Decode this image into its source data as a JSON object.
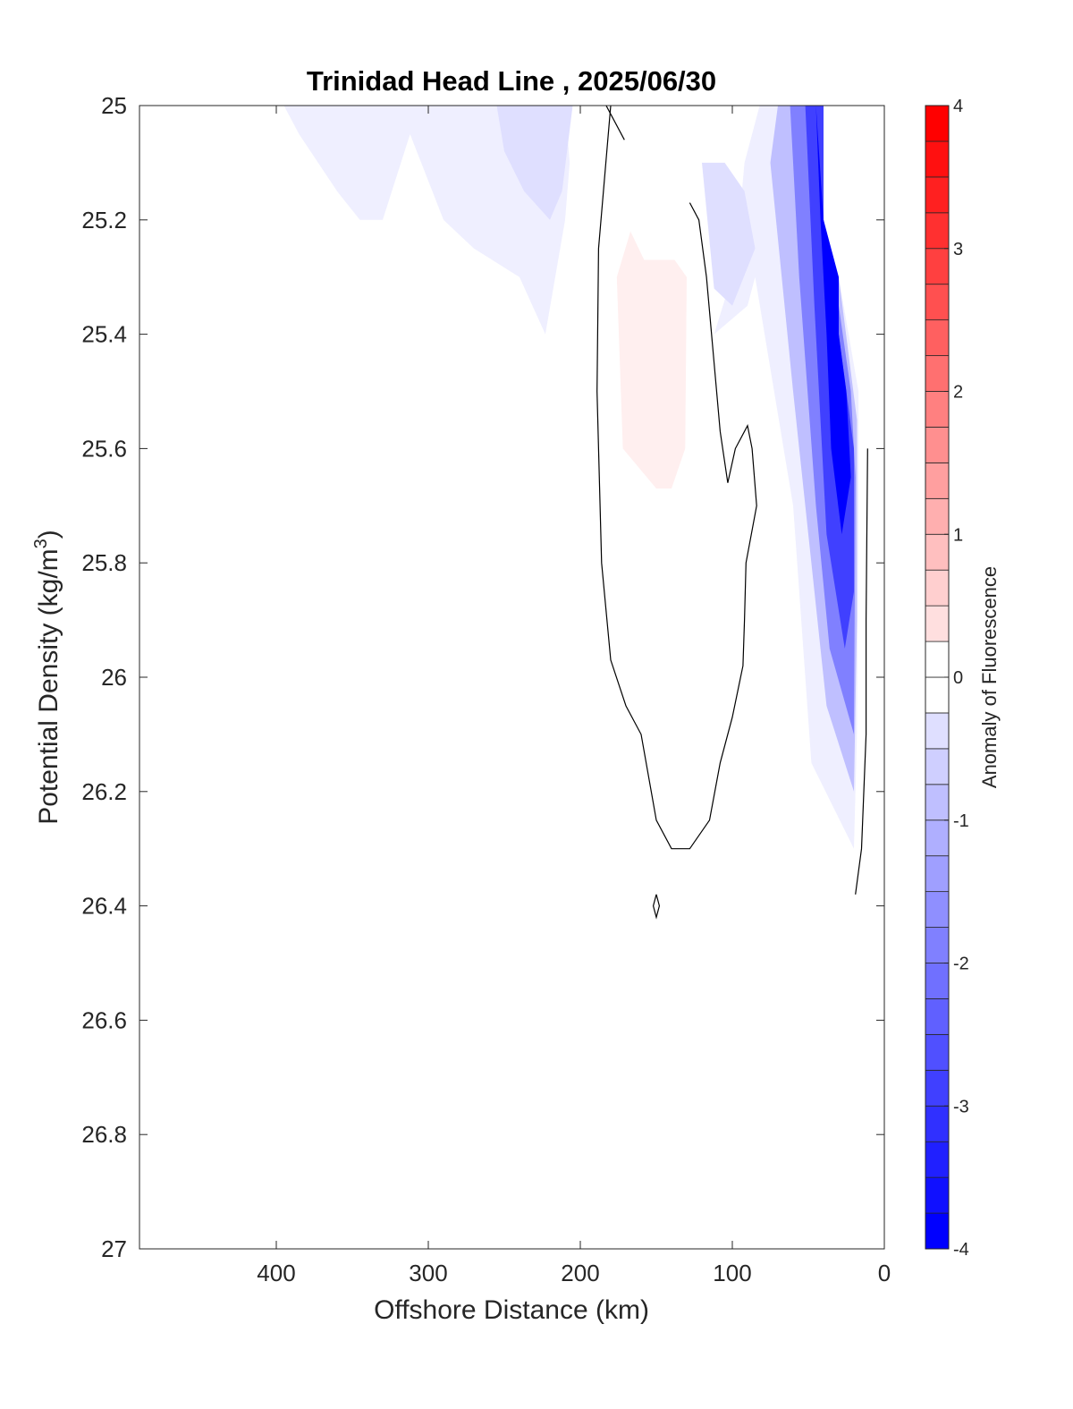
{
  "chart_data": {
    "type": "heatmap",
    "subtype": "filled-contour section",
    "title": "Trinidad Head Line , 2025/06/30",
    "xlabel": "Offshore Distance (km)",
    "ylabel": "Potential Density (kg/m",
    "ylabel_sup": "3",
    "ylabel_close": ")",
    "xlim": [
      490,
      0
    ],
    "ylim": [
      25,
      27
    ],
    "x_reversed": true,
    "y_reversed": true,
    "xticks": [
      400,
      300,
      200,
      100,
      0
    ],
    "xtick_labels": [
      "400",
      "300",
      "200",
      "100",
      "0"
    ],
    "yticks": [
      25,
      25.2,
      25.4,
      25.6,
      25.8,
      26,
      26.2,
      26.4,
      26.6,
      26.8,
      27
    ],
    "ytick_labels": [
      "25",
      "25.2",
      "25.4",
      "25.6",
      "25.8",
      "26",
      "26.2",
      "26.4",
      "26.6",
      "26.8",
      "27"
    ],
    "grid": false,
    "colorbar": {
      "label": "Anomaly of Fluorescence",
      "range": [
        -4,
        4
      ],
      "step": 0.25,
      "ticks": [
        4,
        3,
        2,
        1,
        0,
        -1,
        -2,
        -3,
        -4
      ],
      "tick_labels": [
        "4",
        "3",
        "2",
        "1",
        "0",
        "-1",
        "-2",
        "-3",
        "-4"
      ],
      "colormap": "blue-white-red",
      "low_color": "#0000ff",
      "mid_color": "#ffffff",
      "high_color": "#ff0000"
    },
    "filled_regions": [
      {
        "name": "offshore surface negative",
        "value": -0.25,
        "points": [
          [
            395,
            25
          ],
          [
            210,
            25
          ],
          [
            207,
            25.1
          ],
          [
            210,
            25.2
          ],
          [
            223,
            25.4
          ],
          [
            240,
            25.3
          ],
          [
            270,
            25.25
          ],
          [
            290,
            25.2
          ],
          [
            312,
            25.05
          ],
          [
            330,
            25.2
          ],
          [
            345,
            25.2
          ],
          [
            360,
            25.15
          ],
          [
            385,
            25.05
          ]
        ]
      },
      {
        "name": "offshore core negative",
        "value": -0.5,
        "points": [
          [
            255,
            25
          ],
          [
            205,
            25
          ],
          [
            212,
            25.15
          ],
          [
            220,
            25.2
          ],
          [
            237,
            25.15
          ],
          [
            250,
            25.08
          ]
        ]
      },
      {
        "name": "positive patch",
        "value": 0.25,
        "points": [
          [
            167,
            25.22
          ],
          [
            158,
            25.27
          ],
          [
            138,
            25.27
          ],
          [
            130,
            25.3
          ],
          [
            131,
            25.6
          ],
          [
            140,
            25.67
          ],
          [
            150,
            25.67
          ],
          [
            172,
            25.6
          ],
          [
            176,
            25.3
          ]
        ]
      },
      {
        "name": "coastal negative band",
        "value": -0.25,
        "points": [
          [
            82,
            25.0
          ],
          [
            92,
            25.1
          ],
          [
            98,
            25.28
          ],
          [
            112,
            25.4
          ],
          [
            90,
            25.35
          ],
          [
            85,
            25.3
          ],
          [
            60,
            25.7
          ],
          [
            48,
            26.15
          ],
          [
            20,
            26.3
          ],
          [
            18,
            26.1
          ],
          [
            17,
            25.7
          ],
          [
            17,
            25.5
          ],
          [
            30,
            25.3
          ],
          [
            40,
            25.2
          ],
          [
            40,
            25.0
          ]
        ]
      },
      {
        "name": "coastal band -1",
        "value": -1.0,
        "points": [
          [
            70,
            25.0
          ],
          [
            75,
            25.1
          ],
          [
            60,
            25.5
          ],
          [
            44,
            25.9
          ],
          [
            38,
            26.05
          ],
          [
            20,
            26.2
          ],
          [
            18,
            25.9
          ],
          [
            18,
            25.55
          ],
          [
            30,
            25.3
          ],
          [
            40,
            25.2
          ],
          [
            40,
            25.0
          ]
        ]
      },
      {
        "name": "coastal band -2",
        "value": -2.0,
        "points": [
          [
            62,
            25.0
          ],
          [
            56,
            25.3
          ],
          [
            45,
            25.7
          ],
          [
            36,
            25.95
          ],
          [
            20,
            26.1
          ],
          [
            19,
            25.65
          ],
          [
            22,
            25.5
          ],
          [
            30,
            25.35
          ],
          [
            40,
            25.2
          ],
          [
            40,
            25.0
          ]
        ]
      },
      {
        "name": "coastal band -3",
        "value": -3.0,
        "points": [
          [
            52,
            25.0
          ],
          [
            46,
            25.35
          ],
          [
            38,
            25.75
          ],
          [
            26,
            25.95
          ],
          [
            20,
            25.85
          ],
          [
            20,
            25.6
          ],
          [
            30,
            25.4
          ],
          [
            40,
            25.2
          ],
          [
            40,
            25.0
          ]
        ]
      },
      {
        "name": "coastal core",
        "value": -4.0,
        "points": [
          [
            45,
            25.0
          ],
          [
            40,
            25.2
          ],
          [
            30,
            25.3
          ],
          [
            30,
            25.4
          ],
          [
            25,
            25.5
          ],
          [
            22,
            25.65
          ],
          [
            28,
            25.75
          ],
          [
            35,
            25.6
          ],
          [
            38,
            25.4
          ],
          [
            42,
            25.2
          ]
        ]
      },
      {
        "name": "inner shelf negative",
        "value": -0.5,
        "points": [
          [
            120,
            25.1
          ],
          [
            105,
            25.1
          ],
          [
            92,
            25.15
          ],
          [
            85,
            25.25
          ],
          [
            100,
            25.35
          ],
          [
            112,
            25.32
          ]
        ]
      }
    ],
    "zero_contours": [
      {
        "name": "outer contour",
        "points": [
          [
            180,
            25
          ],
          [
            188,
            25.25
          ],
          [
            189,
            25.5
          ],
          [
            186,
            25.8
          ],
          [
            180,
            25.97
          ],
          [
            170,
            26.05
          ],
          [
            160,
            26.1
          ],
          [
            150,
            26.25
          ],
          [
            140,
            26.3
          ],
          [
            128,
            26.3
          ],
          [
            115,
            26.25
          ],
          [
            108,
            26.15
          ],
          [
            100,
            26.07
          ],
          [
            93,
            25.98
          ],
          [
            92,
            25.9
          ],
          [
            91,
            25.8
          ],
          [
            84,
            25.7
          ],
          [
            87,
            25.6
          ],
          [
            90,
            25.56
          ],
          [
            98,
            25.6
          ],
          [
            103,
            25.66
          ],
          [
            108,
            25.57
          ],
          [
            112,
            25.45
          ],
          [
            117,
            25.3
          ],
          [
            122,
            25.2
          ],
          [
            128,
            25.17
          ]
        ]
      },
      {
        "name": "surface branch",
        "points": [
          [
            183,
            25
          ],
          [
            171,
            25.06
          ]
        ]
      },
      {
        "name": "coastal contour",
        "points": [
          [
            11,
            25.6
          ],
          [
            12,
            25.9
          ],
          [
            12,
            26.1
          ],
          [
            15,
            26.3
          ],
          [
            19,
            26.38
          ]
        ]
      },
      {
        "name": "small loop",
        "points": [
          [
            150,
            26.38
          ],
          [
            148,
            26.4
          ],
          [
            150,
            26.42
          ],
          [
            152,
            26.4
          ],
          [
            150,
            26.38
          ]
        ]
      }
    ]
  }
}
